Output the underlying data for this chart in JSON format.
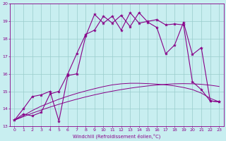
{
  "xlabel": "Windchill (Refroidissement éolien,°C)",
  "xlim": [
    -0.5,
    23.5
  ],
  "ylim": [
    13,
    20
  ],
  "xticks": [
    0,
    1,
    2,
    3,
    4,
    5,
    6,
    7,
    8,
    9,
    10,
    11,
    12,
    13,
    14,
    15,
    16,
    17,
    18,
    19,
    20,
    21,
    22,
    23
  ],
  "yticks": [
    13,
    14,
    15,
    16,
    17,
    18,
    19,
    20
  ],
  "bg_color": "#c8eef0",
  "line_color": "#880088",
  "grid_color": "#99cccc",
  "line1_x": [
    0,
    1,
    2,
    3,
    4,
    5,
    6,
    7,
    8,
    9,
    10,
    11,
    12,
    13,
    14,
    15,
    16,
    17,
    18,
    19,
    20,
    21,
    22,
    23
  ],
  "line1_y": [
    13.35,
    13.6,
    13.9,
    14.15,
    14.35,
    14.55,
    14.72,
    14.88,
    15.02,
    15.15,
    15.27,
    15.37,
    15.43,
    15.46,
    15.46,
    15.44,
    15.41,
    15.37,
    15.31,
    15.22,
    15.1,
    14.9,
    14.6,
    14.4
  ],
  "line2_x": [
    0,
    1,
    2,
    3,
    4,
    5,
    6,
    7,
    8,
    9,
    10,
    11,
    12,
    13,
    14,
    15,
    16,
    17,
    18,
    19,
    20,
    21,
    22,
    23
  ],
  "line2_y": [
    13.35,
    13.55,
    13.75,
    13.93,
    14.1,
    14.26,
    14.41,
    14.55,
    14.68,
    14.8,
    14.91,
    15.01,
    15.1,
    15.18,
    15.25,
    15.31,
    15.36,
    15.4,
    15.43,
    15.44,
    15.43,
    15.4,
    15.35,
    15.28
  ],
  "line3_x": [
    0,
    1,
    2,
    3,
    4,
    5,
    6,
    7,
    8,
    9,
    10,
    11,
    12,
    13,
    14,
    15,
    16,
    17,
    18,
    19,
    20,
    21,
    22,
    23
  ],
  "line3_y": [
    13.35,
    14.0,
    14.7,
    14.8,
    15.0,
    13.3,
    15.9,
    16.0,
    18.15,
    19.4,
    18.9,
    19.3,
    18.5,
    19.5,
    18.9,
    19.0,
    19.1,
    18.8,
    18.85,
    18.8,
    15.55,
    15.1,
    14.45,
    14.4
  ],
  "line4_x": [
    0,
    1,
    2,
    3,
    4,
    5,
    6,
    7,
    8,
    9,
    10,
    11,
    12,
    13,
    14,
    15,
    16,
    17,
    18,
    19,
    20,
    21,
    22,
    23
  ],
  "line4_y": [
    13.35,
    13.7,
    13.6,
    13.8,
    14.85,
    15.0,
    16.0,
    17.15,
    18.25,
    18.5,
    19.3,
    18.9,
    19.35,
    18.7,
    19.5,
    18.95,
    18.65,
    17.15,
    17.65,
    18.95,
    17.1,
    17.5,
    14.45,
    14.4
  ]
}
